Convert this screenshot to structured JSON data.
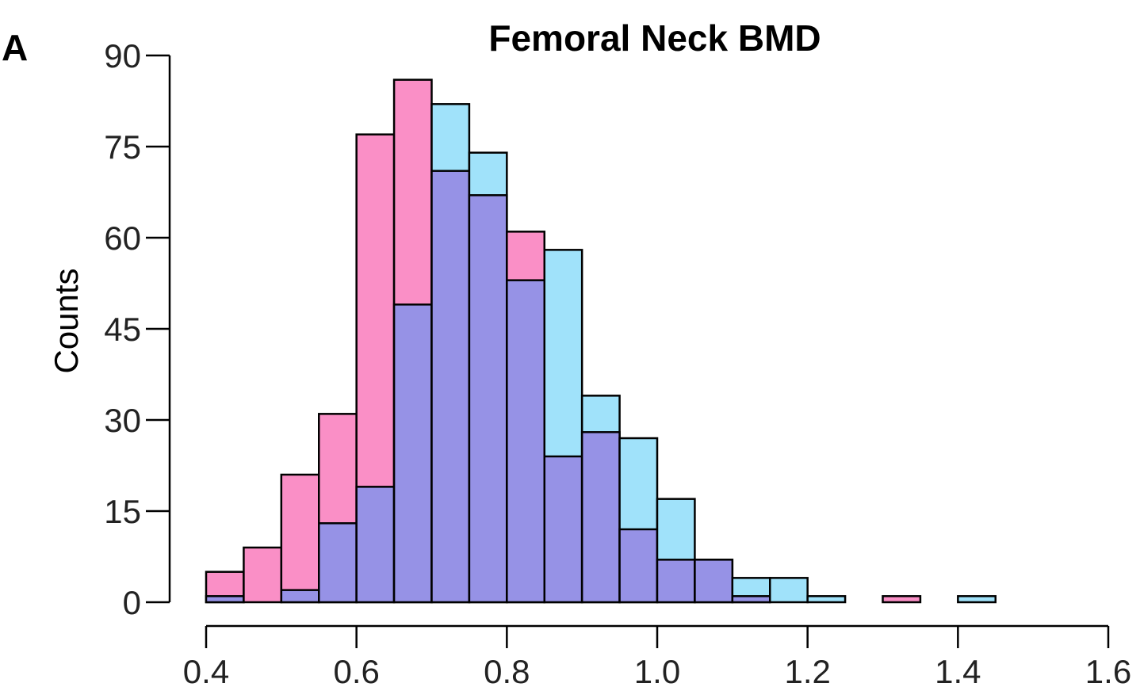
{
  "panel_label": "A",
  "chart_data": {
    "type": "bar",
    "title": "Femoral Neck BMD",
    "xlabel": "",
    "ylabel": "Counts",
    "bin_width": 0.05,
    "bin_starts": [
      0.4,
      0.45,
      0.5,
      0.55,
      0.6,
      0.65,
      0.7,
      0.75,
      0.8,
      0.85,
      0.9,
      0.95,
      1.0,
      1.05,
      1.1,
      1.15,
      1.2,
      1.25,
      1.3,
      1.35,
      1.4
    ],
    "series": [
      {
        "color": "#fa8fc6",
        "values": [
          5,
          9,
          21,
          31,
          77,
          86,
          71,
          67,
          61,
          24,
          28,
          12,
          7,
          7,
          1,
          0,
          0,
          0,
          1,
          0,
          0
        ]
      },
      {
        "color": "#a0e2fa",
        "values": [
          1,
          0,
          2,
          13,
          19,
          49,
          82,
          74,
          53,
          58,
          34,
          27,
          17,
          7,
          4,
          4,
          1,
          0,
          0,
          0,
          1
        ]
      }
    ],
    "overlap_color": "#9692e6",
    "xlim": [
      0.4,
      1.6
    ],
    "ylim": [
      0,
      90
    ],
    "x_ticks": [
      "0.4",
      "0.6",
      "0.8",
      "1.0",
      "1.2",
      "1.4",
      "1.6"
    ],
    "y_ticks": [
      "0",
      "15",
      "30",
      "45",
      "60",
      "75",
      "90"
    ],
    "grid": false,
    "legend": "none"
  }
}
